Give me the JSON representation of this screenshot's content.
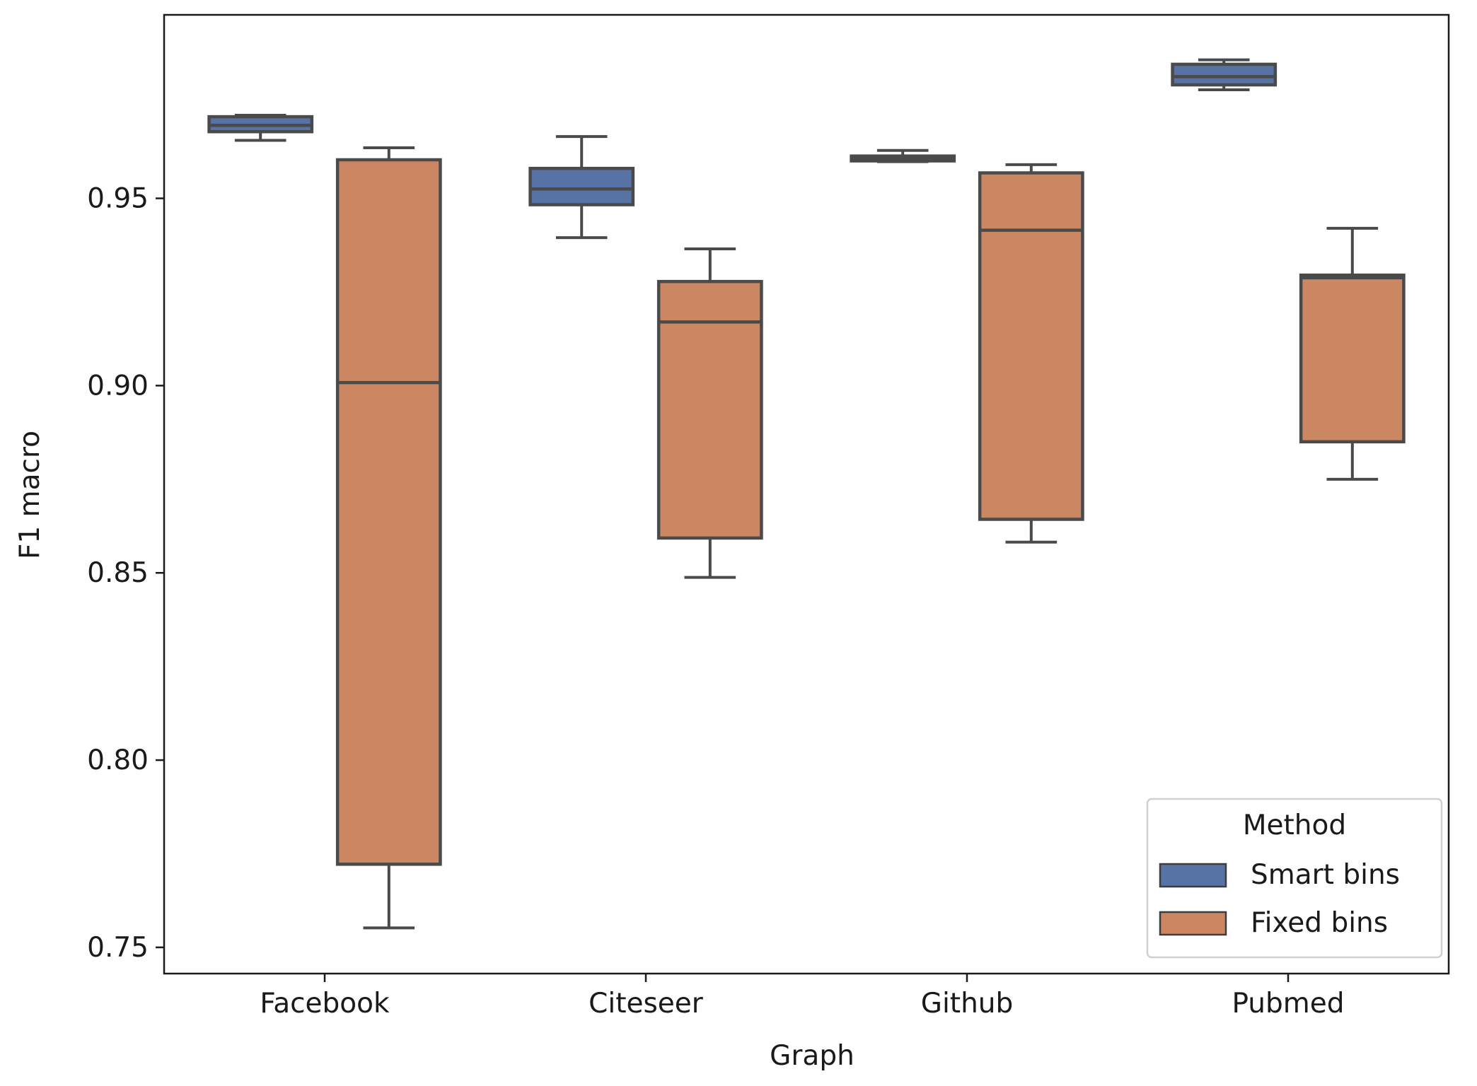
{
  "chart_data": {
    "type": "box",
    "xlabel": "Graph",
    "ylabel": "F1 macro",
    "ylim": [
      0.743,
      0.999
    ],
    "yticks": [
      "0.75",
      "0.80",
      "0.85",
      "0.90",
      "0.95"
    ],
    "categories": [
      "Facebook",
      "Citeseer",
      "Github",
      "Pubmed"
    ],
    "grid": false,
    "legend": {
      "title": "Method",
      "placement": "bottom-right"
    },
    "series": [
      {
        "name": "Smart bins",
        "color": "#5773a6",
        "boxes": [
          {
            "min": 0.9655,
            "q1": 0.9678,
            "median": 0.9695,
            "q3": 0.9718,
            "max": 0.9722
          },
          {
            "min": 0.9395,
            "q1": 0.9483,
            "median": 0.9525,
            "q3": 0.958,
            "max": 0.9665
          },
          {
            "min": 0.9598,
            "q1": 0.96,
            "median": 0.9607,
            "q3": 0.9613,
            "max": 0.9628
          },
          {
            "min": 0.979,
            "q1": 0.9803,
            "median": 0.9825,
            "q3": 0.9858,
            "max": 0.987
          }
        ]
      },
      {
        "name": "Fixed bins",
        "color": "#cb8762",
        "boxes": [
          {
            "min": 0.7552,
            "q1": 0.7722,
            "median": 0.9008,
            "q3": 0.9603,
            "max": 0.9635
          },
          {
            "min": 0.8488,
            "q1": 0.8593,
            "median": 0.917,
            "q3": 0.9278,
            "max": 0.9365
          },
          {
            "min": 0.8582,
            "q1": 0.8643,
            "median": 0.9415,
            "q3": 0.9568,
            "max": 0.959
          },
          {
            "min": 0.875,
            "q1": 0.885,
            "median": 0.9288,
            "q3": 0.9295,
            "max": 0.942
          }
        ]
      }
    ]
  }
}
